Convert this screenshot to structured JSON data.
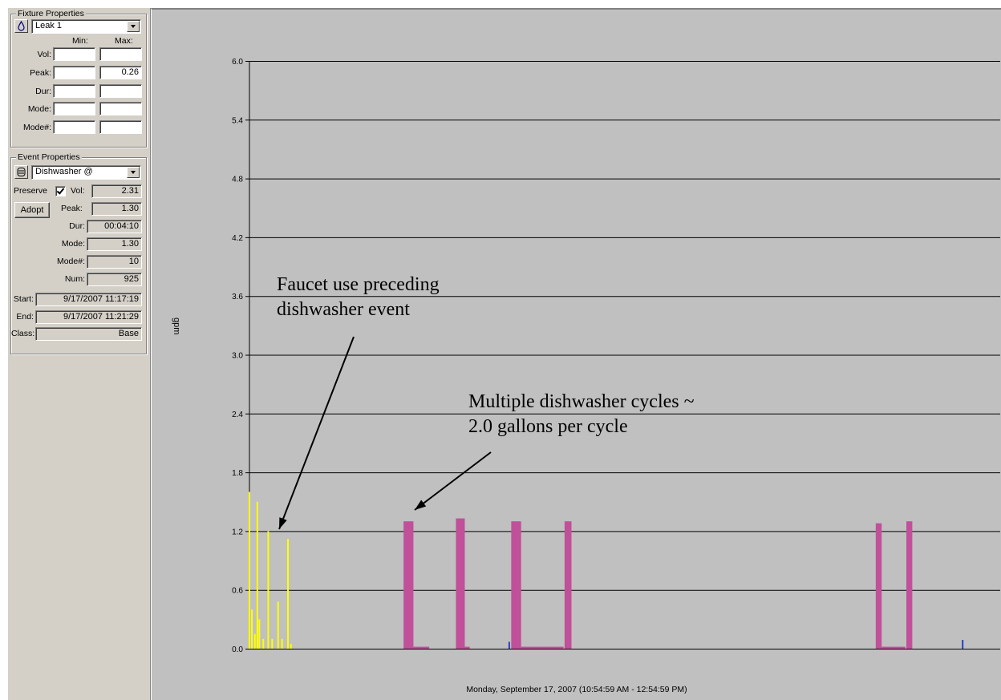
{
  "fixture_properties": {
    "title": "Fixture Properties",
    "fixture_selected": "Leak 1",
    "col_min": "Min:",
    "col_max": "Max:",
    "rows": [
      {
        "label": "Vol:",
        "min": "",
        "max": ""
      },
      {
        "label": "Peak:",
        "min": "",
        "max": "0.26"
      },
      {
        "label": "Dur:",
        "min": "",
        "max": ""
      },
      {
        "label": "Mode:",
        "min": "",
        "max": ""
      },
      {
        "label": "Mode#:",
        "min": "",
        "max": ""
      }
    ],
    "icon": "water-drop-icon"
  },
  "event_properties": {
    "title": "Event Properties",
    "event_selected": "Dishwasher @",
    "icon": "dishwasher-icon",
    "preserve_label": "Preserve",
    "preserve_checked": true,
    "adopt_label": "Adopt",
    "vol_label": "Vol:",
    "vol": "2.31",
    "peak_label": "Peak:",
    "peak": "1.30",
    "dur_label": "Dur:",
    "dur": "00:04:10",
    "mode_label": "Mode:",
    "mode": "1.30",
    "modenum_label": "Mode#:",
    "modenum": "10",
    "num_label": "Num:",
    "num": "925",
    "start_label": "Start:",
    "start": "9/17/2007 11:17:19",
    "end_label": "End:",
    "end": "9/17/2007 11:21:29",
    "class_label": "Class:",
    "class": "Base"
  },
  "chart": {
    "ylabel": "gpm",
    "x_caption": "Monday, September 17, 2007 (10:54:59 AM - 12:54:59 PM)",
    "annotation_faucet": [
      "Faucet use preceding",
      "dishwasher event"
    ],
    "annotation_dishwasher": [
      "Multiple dishwasher cycles ~",
      "2.0 gallons per cycle"
    ],
    "colors": {
      "background": "#c0c0c0",
      "faucet": "#ffff00",
      "dishwasher": "#c0509a",
      "leak": "#2a3fbf",
      "grid": "#000000"
    }
  },
  "chart_data": {
    "type": "bar",
    "ylabel": "gpm",
    "xlabel": "Monday, September 17, 2007 (10:54:59 AM - 12:54:59 PM)",
    "ylim": [
      0,
      6.0
    ],
    "yticks": [
      "0.0",
      "0.6",
      "1.2",
      "1.8",
      "2.4",
      "3.0",
      "3.6",
      "4.2",
      "4.8",
      "5.4",
      "6.0"
    ],
    "grid": true,
    "series": [
      {
        "name": "Faucet",
        "color": "#ffff00",
        "points": [
          {
            "t": 0.0,
            "v": 1.6
          },
          {
            "t": 0.25,
            "v": 0.4
          },
          {
            "t": 0.55,
            "v": 0.15
          },
          {
            "t": 0.8,
            "v": 1.5
          },
          {
            "t": 1.0,
            "v": 0.3
          },
          {
            "t": 1.4,
            "v": 0.1
          },
          {
            "t": 1.9,
            "v": 1.2
          },
          {
            "t": 2.3,
            "v": 0.1
          },
          {
            "t": 2.9,
            "v": 0.48
          },
          {
            "t": 3.3,
            "v": 0.1
          },
          {
            "t": 3.9,
            "v": 1.12
          },
          {
            "t": 4.2,
            "v": 0.05
          }
        ]
      },
      {
        "name": "Dishwasher",
        "color": "#c0509a",
        "segments": [
          {
            "t0": 15.6,
            "t1": 16.6,
            "v": 1.3
          },
          {
            "t0": 16.6,
            "t1": 18.2,
            "v": 0.02
          },
          {
            "t0": 20.9,
            "t1": 21.8,
            "v": 1.33
          },
          {
            "t0": 21.8,
            "t1": 22.3,
            "v": 0.02
          },
          {
            "t0": 26.5,
            "t1": 27.5,
            "v": 1.3
          },
          {
            "t0": 27.5,
            "t1": 31.8,
            "v": 0.02
          },
          {
            "t0": 31.9,
            "t1": 32.6,
            "v": 1.3
          },
          {
            "t0": 63.4,
            "t1": 64.0,
            "v": 1.28
          },
          {
            "t0": 64.0,
            "t1": 66.4,
            "v": 0.02
          },
          {
            "t0": 66.5,
            "t1": 67.1,
            "v": 1.3
          }
        ]
      },
      {
        "name": "Leak",
        "color": "#2a3fbf",
        "points": [
          {
            "t": 26.3,
            "v": 0.07
          },
          {
            "t": 72.2,
            "v": 0.09
          }
        ]
      }
    ]
  }
}
